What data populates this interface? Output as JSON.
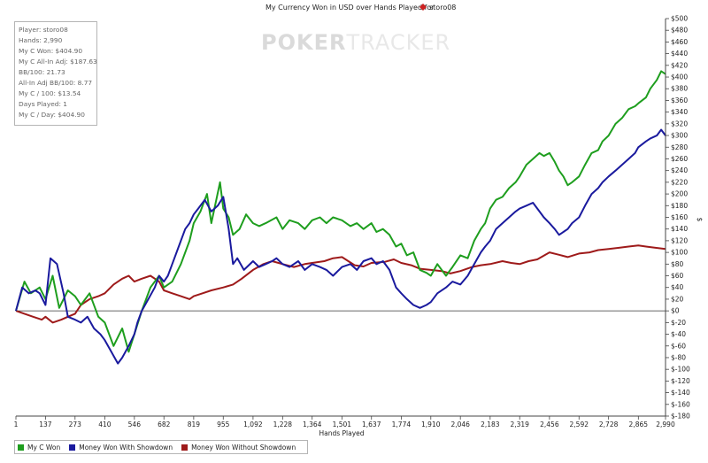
{
  "chart_data": {
    "type": "line",
    "title": "My Currency Won in USD over Hands Played for",
    "player_name": "storo08",
    "xlabel": "Hands Played",
    "ylabel": "$",
    "xlim": [
      1,
      2990
    ],
    "ylim": [
      -180,
      500
    ],
    "x_ticks": [
      "1",
      "137",
      "273",
      "410",
      "546",
      "682",
      "819",
      "955",
      "1,092",
      "1,228",
      "1,364",
      "1,501",
      "1,637",
      "1,774",
      "1,910",
      "2,046",
      "2,183",
      "2,319",
      "2,456",
      "2,592",
      "2,728",
      "2,865",
      "2,990"
    ],
    "y_ticks": [
      "$500",
      "$480",
      "$460",
      "$440",
      "$420",
      "$400",
      "$380",
      "$360",
      "$340",
      "$320",
      "$300",
      "$280",
      "$260",
      "$240",
      "$220",
      "$200",
      "$180",
      "$160",
      "$140",
      "$120",
      "$100",
      "$80",
      "$60",
      "$40",
      "$20",
      "$0",
      "$-20",
      "$-40",
      "$-60",
      "$-80",
      "$-100",
      "$-120",
      "$-140",
      "$-160",
      "$-180"
    ],
    "grid": false,
    "legend_position": "bottom-left",
    "series": [
      {
        "name": "My C Won",
        "color": "#1e9e1e",
        "x": [
          1,
          40,
          70,
          110,
          137,
          170,
          200,
          240,
          273,
          300,
          340,
          380,
          410,
          450,
          490,
          520,
          546,
          580,
          620,
          660,
          682,
          720,
          760,
          800,
          819,
          850,
          880,
          900,
          920,
          940,
          955,
          980,
          1000,
          1030,
          1060,
          1092,
          1120,
          1150,
          1200,
          1228,
          1260,
          1300,
          1330,
          1364,
          1400,
          1430,
          1460,
          1501,
          1540,
          1570,
          1600,
          1637,
          1660,
          1690,
          1720,
          1750,
          1774,
          1800,
          1830,
          1860,
          1890,
          1910,
          1940,
          1980,
          2010,
          2046,
          2080,
          2110,
          2140,
          2160,
          2183,
          2210,
          2240,
          2270,
          2300,
          2319,
          2350,
          2380,
          2410,
          2430,
          2456,
          2480,
          2500,
          2520,
          2540,
          2560,
          2592,
          2620,
          2650,
          2680,
          2700,
          2728,
          2760,
          2790,
          2820,
          2850,
          2865,
          2900,
          2920,
          2950,
          2970,
          2990
        ],
        "y": [
          0,
          50,
          30,
          40,
          20,
          60,
          5,
          35,
          25,
          10,
          30,
          -10,
          -20,
          -60,
          -30,
          -70,
          -40,
          0,
          40,
          60,
          40,
          50,
          80,
          120,
          150,
          170,
          200,
          150,
          185,
          220,
          175,
          160,
          130,
          140,
          165,
          150,
          145,
          150,
          160,
          140,
          155,
          150,
          140,
          155,
          160,
          150,
          160,
          155,
          145,
          150,
          140,
          150,
          135,
          140,
          130,
          110,
          115,
          95,
          100,
          70,
          65,
          60,
          80,
          60,
          75,
          95,
          90,
          120,
          140,
          150,
          175,
          190,
          195,
          210,
          220,
          230,
          250,
          260,
          270,
          265,
          270,
          255,
          240,
          230,
          215,
          220,
          230,
          250,
          270,
          275,
          290,
          300,
          320,
          330,
          345,
          350,
          355,
          365,
          380,
          395,
          410,
          405
        ]
      },
      {
        "name": "Money Won With Showdown",
        "color": "#1a1a9e",
        "x": [
          1,
          30,
          60,
          90,
          110,
          137,
          160,
          190,
          220,
          240,
          273,
          300,
          330,
          360,
          390,
          410,
          440,
          470,
          490,
          520,
          546,
          560,
          580,
          610,
          640,
          660,
          682,
          700,
          720,
          740,
          760,
          780,
          800,
          819,
          840,
          870,
          900,
          930,
          955,
          980,
          1000,
          1020,
          1050,
          1092,
          1120,
          1150,
          1180,
          1200,
          1228,
          1260,
          1300,
          1330,
          1364,
          1400,
          1430,
          1460,
          1501,
          1540,
          1570,
          1600,
          1637,
          1660,
          1690,
          1720,
          1750,
          1774,
          1800,
          1830,
          1860,
          1890,
          1910,
          1940,
          1980,
          2010,
          2046,
          2080,
          2110,
          2140,
          2160,
          2183,
          2210,
          2240,
          2270,
          2300,
          2319,
          2350,
          2380,
          2410,
          2430,
          2456,
          2480,
          2500,
          2520,
          2540,
          2560,
          2592,
          2620,
          2650,
          2680,
          2700,
          2728,
          2760,
          2790,
          2820,
          2850,
          2865,
          2900,
          2920,
          2950,
          2970,
          2990
        ],
        "y": [
          0,
          40,
          30,
          35,
          30,
          10,
          90,
          80,
          30,
          -10,
          -15,
          -20,
          -10,
          -30,
          -40,
          -50,
          -70,
          -90,
          -80,
          -60,
          -40,
          -20,
          0,
          20,
          40,
          60,
          50,
          60,
          80,
          100,
          120,
          140,
          150,
          165,
          175,
          190,
          170,
          180,
          195,
          140,
          80,
          90,
          70,
          85,
          75,
          80,
          85,
          90,
          80,
          75,
          85,
          70,
          80,
          75,
          70,
          60,
          75,
          80,
          70,
          85,
          90,
          80,
          85,
          70,
          40,
          30,
          20,
          10,
          5,
          10,
          15,
          30,
          40,
          50,
          45,
          60,
          80,
          100,
          110,
          120,
          140,
          150,
          160,
          170,
          175,
          180,
          185,
          170,
          160,
          150,
          140,
          130,
          135,
          140,
          150,
          160,
          180,
          200,
          210,
          220,
          230,
          240,
          250,
          260,
          270,
          280,
          290,
          295,
          300,
          310,
          300
        ]
      },
      {
        "name": "Money Won Without Showdown",
        "color": "#9e1a1a",
        "x": [
          1,
          40,
          80,
          120,
          137,
          170,
          210,
          240,
          273,
          300,
          340,
          380,
          410,
          450,
          490,
          520,
          546,
          580,
          620,
          660,
          682,
          720,
          760,
          800,
          819,
          860,
          900,
          955,
          1000,
          1040,
          1092,
          1140,
          1180,
          1228,
          1280,
          1330,
          1364,
          1420,
          1460,
          1501,
          1560,
          1600,
          1637,
          1700,
          1740,
          1774,
          1820,
          1860,
          1910,
          1960,
          2000,
          2046,
          2100,
          2140,
          2183,
          2240,
          2280,
          2319,
          2360,
          2400,
          2456,
          2500,
          2540,
          2592,
          2640,
          2680,
          2728,
          2780,
          2820,
          2865,
          2900,
          2940,
          2990
        ],
        "y": [
          0,
          -5,
          -10,
          -15,
          -10,
          -20,
          -15,
          -10,
          -5,
          10,
          20,
          25,
          30,
          45,
          55,
          60,
          50,
          55,
          60,
          50,
          35,
          30,
          25,
          20,
          25,
          30,
          35,
          40,
          45,
          55,
          70,
          80,
          85,
          80,
          75,
          80,
          82,
          85,
          90,
          92,
          78,
          76,
          82,
          84,
          88,
          82,
          78,
          72,
          70,
          68,
          64,
          68,
          75,
          78,
          80,
          85,
          82,
          80,
          85,
          88,
          100,
          96,
          92,
          98,
          100,
          104,
          106,
          108,
          110,
          112,
          110,
          108,
          106
        ]
      }
    ]
  },
  "stats": [
    "Player: storo08",
    "Hands: 2,990",
    "My C Won: $404.90",
    "My C All-In Adj: $187.63",
    "BB/100: 21.73",
    "All-In Adj BB/100: 8.77",
    "My C / 100: $13.54",
    "Days Played: 1",
    "My C / Day: $404.90"
  ],
  "watermark": {
    "bold": "POKER",
    "light": "TRACKER"
  }
}
